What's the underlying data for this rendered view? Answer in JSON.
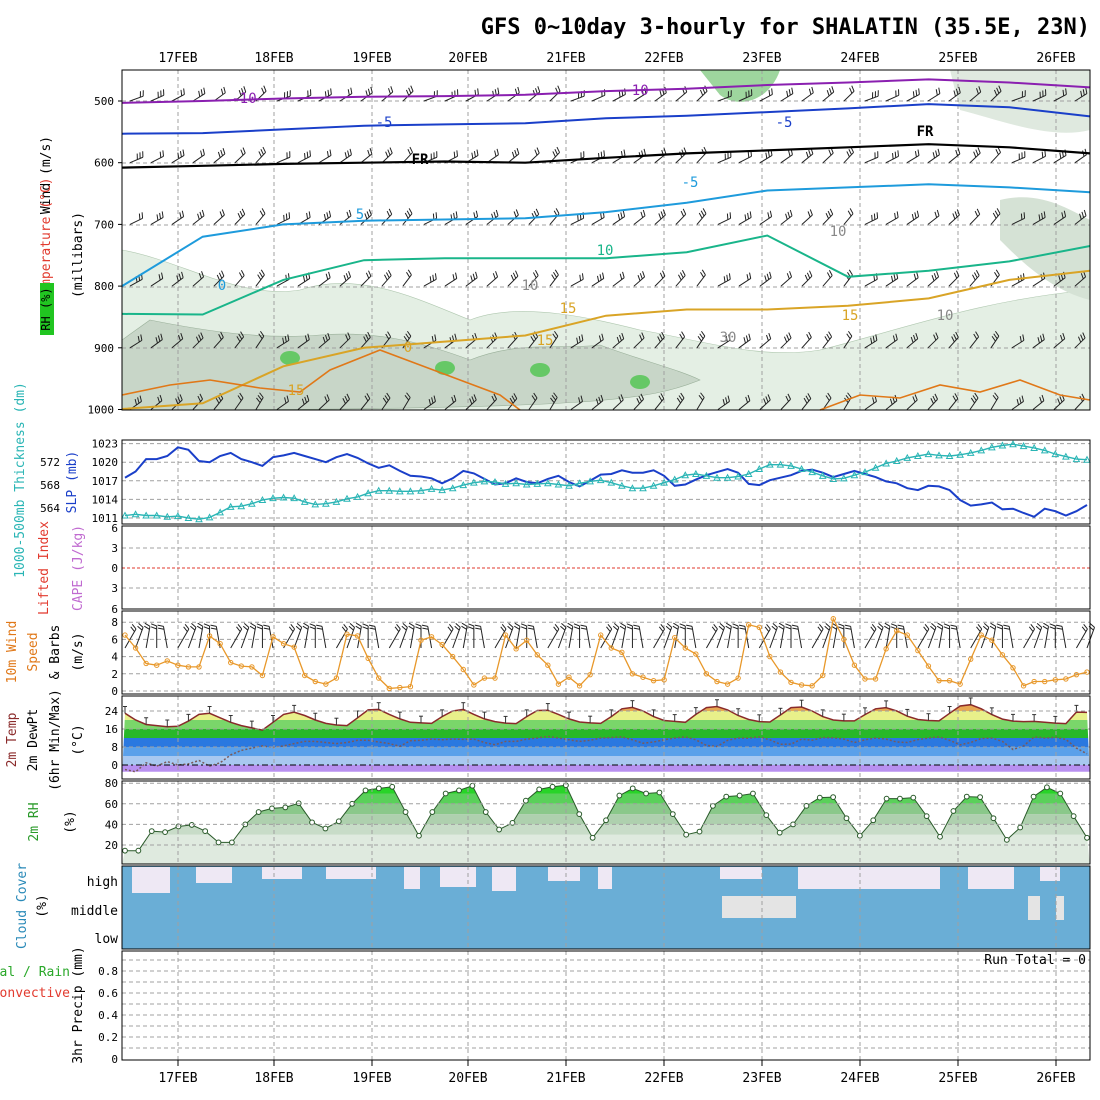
{
  "title": "GFS 0~10day 3-hourly for SHALATIN (35.5E, 23N)",
  "run_total_text": "Run Total = 0",
  "colors": {
    "frame": "#000000",
    "grid": "#a0a0a0",
    "slp": "#1a3fc9",
    "thickness": "#2ab5b5",
    "wind_speed": "#e8982a",
    "temp_purple": "#8a1fb0",
    "temp_blue_dark": "#1a3fc9",
    "temp_blue_light": "#1e9bdc",
    "temp_green": "#19b58a",
    "temp_gold": "#d9a426",
    "temp_orange": "#e07818",
    "rh_green": "#21c521",
    "cloud_blue": "#6aaed6",
    "lifted_red": "#e23a2e",
    "cape_purple": "#c06ad0"
  },
  "chart_data": [
    {
      "type": "line",
      "panel": "upper-air",
      "x_dates": [
        "17FEB",
        "18FEB",
        "19FEB",
        "20FEB",
        "21FEB",
        "22FEB",
        "23FEB",
        "24FEB",
        "25FEB",
        "26FEB"
      ],
      "ylabel_parts": [
        "RH (%)",
        "Temperature (°C)",
        "Wind (m/s)",
        "(millibars)"
      ],
      "y_ticks": [
        "500",
        "600",
        "700",
        "800",
        "900",
        "1000"
      ],
      "contour_labels": [
        "-10",
        "-5",
        "FR",
        "-5",
        "5",
        "0",
        "10",
        "15",
        "15",
        "10",
        "-10",
        "-5",
        "FR",
        "10",
        "30",
        "0",
        "15",
        "10",
        "15"
      ],
      "isotherms": [
        {
          "name": "-10",
          "values": [
            503,
            500,
            496,
            493,
            492,
            490,
            484,
            480,
            474,
            470,
            465,
            470,
            478
          ]
        },
        {
          "name": "-5",
          "values": [
            553,
            552,
            546,
            540,
            538,
            536,
            528,
            524,
            518,
            512,
            505,
            510,
            525
          ]
        },
        {
          "name": "FR",
          "values": [
            608,
            605,
            602,
            600,
            598,
            600,
            592,
            585,
            580,
            575,
            570,
            575,
            585
          ]
        },
        {
          "name": "5",
          "values": [
            800,
            720,
            700,
            694,
            692,
            690,
            680,
            665,
            645,
            640,
            635,
            640,
            648
          ]
        },
        {
          "name": "10",
          "values": [
            845,
            846,
            790,
            758,
            755,
            755,
            755,
            745,
            718,
            785,
            775,
            760,
            735
          ]
        },
        {
          "name": "15",
          "values": [
            1000,
            990,
            930,
            900,
            890,
            880,
            848,
            838,
            838,
            832,
            820,
            790,
            775
          ]
        }
      ]
    },
    {
      "type": "line",
      "panel": "pressure-thickness",
      "ylabel_left": "1000-500mb Thickness (dm)",
      "ylabel_right": "SLP (mb)",
      "left_ticks": [
        "572",
        "568",
        "564"
      ],
      "right_ticks": [
        "1023",
        "1020",
        "1017",
        "1014",
        "1011"
      ],
      "ylim": [
        1010,
        1023
      ],
      "series": [
        {
          "name": "SLP (mb)",
          "values": [
            1017.5,
            1018.5,
            1020.5,
            1020.5,
            1021,
            1022.4,
            1022,
            1020.2,
            1020,
            1021,
            1021.5,
            1020.5,
            1020,
            1019.4,
            1020.8,
            1021.1,
            1021.5,
            1021,
            1020.5,
            1020,
            1020.8,
            1021.3,
            1020.7,
            1019.8,
            1019.1,
            1019.5,
            1018.6,
            1017.8,
            1017.7,
            1017.4,
            1016.6,
            1017.4,
            1018.6,
            1018.2,
            1017.3,
            1016.4,
            1016.6,
            1017.4,
            1016.8,
            1016.6,
            1017.3,
            1017.8,
            1016.8,
            1016.1,
            1017,
            1018,
            1018.1,
            1018.7,
            1018.3,
            1018.3,
            1018.7,
            1017.8,
            1016.2,
            1016.4,
            1017.2,
            1017.9,
            1018.4,
            1018.9,
            1018.3,
            1016.5,
            1016.3,
            1017.1,
            1017.5,
            1017.9,
            1018.6,
            1018.8,
            1018.3,
            1017.6,
            1018.1,
            1018.6,
            1018.1,
            1017.6,
            1016.9,
            1016.6,
            1015.8,
            1015.5,
            1016.2,
            1016.1,
            1015.5,
            1013.9,
            1013,
            1013.2,
            1013.5,
            1012.4,
            1012.5,
            1011.8,
            1011.2,
            1012.5,
            1012.1,
            1011.4,
            1012.1,
            1013.1
          ]
        },
        {
          "name": "1000-500mb Thickness (dm)",
          "values": [
            1011.4,
            1011.6,
            1011.4,
            1011.4,
            1011.2,
            1011.3,
            1011,
            1010.8,
            1011.1,
            1011.9,
            1012.8,
            1012.9,
            1013.3,
            1013.9,
            1014.2,
            1014.3,
            1014.2,
            1013.6,
            1013.2,
            1013.3,
            1013.6,
            1014.1,
            1014.4,
            1015,
            1015.4,
            1015.4,
            1015.3,
            1015.3,
            1015.4,
            1015.7,
            1015.5,
            1015.8,
            1016.3,
            1016.7,
            1016.9,
            1016.8,
            1016.5,
            1016.6,
            1016.4,
            1016.5,
            1016.6,
            1016.4,
            1016.2,
            1016.6,
            1016.9,
            1017.1,
            1016.7,
            1016.2,
            1015.8,
            1015.8,
            1016.2,
            1016.7,
            1017.2,
            1017.9,
            1018.1,
            1017.8,
            1017.5,
            1017.5,
            1017.7,
            1018.1,
            1018.9,
            1019.6,
            1019.6,
            1019.4,
            1018.9,
            1018.4,
            1017.8,
            1017.3,
            1017.4,
            1017.9,
            1018.4,
            1019.1,
            1019.8,
            1020.2,
            1020.7,
            1021,
            1021.3,
            1021.1,
            1021,
            1021.2,
            1021.5,
            1021.9,
            1022.4,
            1022.7,
            1022.9,
            1022.6,
            1022.3,
            1021.9,
            1021.3,
            1020.9,
            1020.5,
            1020.4
          ]
        }
      ]
    },
    {
      "type": "line",
      "panel": "lifted-cape",
      "ylabel_parts": [
        "Lifted Index",
        "CAPE (J/kg)"
      ],
      "y_ticks": [
        "6",
        "3",
        "0",
        "3",
        "6"
      ],
      "series": [
        {
          "name": "Lifted Index",
          "values": []
        }
      ]
    },
    {
      "type": "line",
      "panel": "wind-10m",
      "ylabel_parts": [
        "10m Wind",
        "Speed",
        "& Barbs",
        "(m/s)"
      ],
      "y_ticks": [
        "8",
        "6",
        "4",
        "2",
        "0"
      ],
      "ylim": [
        0,
        8.5
      ],
      "series": [
        {
          "name": "10m Wind Speed",
          "values": [
            6.5,
            5,
            3.2,
            3,
            3.5,
            3,
            2.8,
            2.8,
            6.4,
            5.5,
            3.3,
            2.9,
            2.8,
            1.8,
            6.3,
            5.5,
            5.1,
            1.8,
            1.1,
            0.8,
            1.5,
            6.6,
            6.4,
            3.8,
            1.5,
            0.3,
            0.4,
            0.5,
            5.9,
            6.3,
            5.4,
            4,
            2.5,
            0.7,
            1.5,
            1.5,
            6.5,
            4.9,
            5.9,
            4.2,
            3,
            0.8,
            1.6,
            0.6,
            1.9,
            6.5,
            5,
            4.5,
            2,
            1.6,
            1.2,
            1.3,
            6.2,
            5,
            4.3,
            2,
            1.1,
            0.8,
            1.5,
            7.7,
            7.4,
            4,
            2.2,
            1,
            0.7,
            0.6,
            1.8,
            8.4,
            6,
            3,
            1.4,
            1.4,
            4.9,
            7,
            6.5,
            4.7,
            2.9,
            1.2,
            1.2,
            0.8,
            3.7,
            6.5,
            5.9,
            4.2,
            2.7,
            0.6,
            1.1,
            1.1,
            1.3,
            1.4,
            1.9,
            2.2
          ]
        }
      ]
    },
    {
      "type": "area",
      "panel": "temp-2m",
      "ylabel_parts": [
        "2m Temp",
        "2m DewPt",
        "(6hr Min/Max)",
        "(°C)"
      ],
      "y_ticks": [
        "24",
        "16",
        "8",
        "0"
      ],
      "ylim": [
        -3,
        27
      ],
      "series": [
        {
          "name": "2m Temp",
          "values": [
            23,
            20,
            18,
            17.5,
            17,
            17.2,
            19.5,
            22.5,
            23,
            21,
            19,
            17.5,
            16.5,
            15.5,
            19,
            22.5,
            23.5,
            22,
            20,
            18.5,
            17.8,
            17.5,
            21,
            24.5,
            24.7,
            22.5,
            20.5,
            19,
            18.7,
            18.5,
            21.5,
            24,
            24.7,
            22.5,
            20.5,
            19.3,
            18.6,
            18.4,
            21.5,
            24.2,
            24.3,
            22.5,
            20.5,
            19.1,
            18.7,
            18.5,
            21.5,
            25,
            25.6,
            24,
            21.5,
            19.8,
            19.4,
            19,
            22.5,
            25.5,
            26,
            24.5,
            22,
            20.2,
            19.3,
            19.1,
            22.2,
            25.5,
            25.8,
            24,
            21.5,
            20,
            19.6,
            19.6,
            22.4,
            25,
            25.5,
            24,
            21.7,
            20.2,
            19.8,
            19.6,
            23,
            26.2,
            26.8,
            25,
            22.4,
            20.4,
            19.5,
            19.3,
            19.4,
            19,
            18.6,
            18.4,
            23.5,
            23.4
          ]
        },
        {
          "name": "2m DewPt",
          "values": [
            -2,
            -3,
            1,
            -0.5,
            1.5,
            0,
            0.5,
            2,
            -0.5,
            1,
            4.5,
            6.5,
            7.5,
            8.5,
            7.8,
            8.5,
            9.5,
            10.5,
            10.5,
            10,
            9.5,
            10,
            11,
            11,
            10.2,
            9.5,
            8.3,
            10.8,
            11,
            11.5,
            11.2,
            11.5,
            11.4,
            11.5,
            10,
            9,
            10.5,
            10.5,
            11.5,
            12,
            12.7,
            12,
            11.2,
            10.5,
            11,
            12,
            12.2,
            12.5,
            11.2,
            9.7,
            10.2,
            11.2,
            12,
            12.5,
            11.2,
            8.7,
            8.2,
            11,
            12,
            11.9,
            12.5,
            11.2,
            9.2,
            9.3,
            11.5,
            11,
            12.2,
            12.1,
            11.5,
            10,
            11.2,
            12,
            11.5,
            10.2,
            10,
            11.3,
            12,
            12.5,
            11,
            9,
            10,
            11.8,
            12,
            10.5,
            6.9,
            8.5,
            12.5,
            12,
            12.3,
            11.4,
            7.5,
            5
          ]
        }
      ]
    },
    {
      "type": "area",
      "panel": "rh-2m",
      "ylabel_parts": [
        "2m RH",
        "(%)"
      ],
      "y_ticks": [
        "80",
        "60",
        "40",
        "20"
      ],
      "ylim": [
        10,
        82
      ],
      "series": [
        {
          "name": "2m RH",
          "values": [
            14.5,
            14.5,
            33.5,
            32.5,
            38,
            39.5,
            33.5,
            22.5,
            22.5,
            40,
            52,
            55.5,
            56.5,
            60.5,
            42,
            36,
            43,
            60,
            73,
            75,
            76.5,
            52,
            29,
            52,
            70,
            73,
            77.5,
            52,
            35,
            41.5,
            63,
            74,
            76.5,
            78,
            50,
            27,
            44,
            68,
            75,
            70,
            71,
            50,
            30,
            33,
            58,
            67,
            68,
            70,
            49,
            32,
            40,
            58,
            66,
            66.5,
            46,
            29,
            44,
            65,
            65,
            66,
            48,
            28,
            53,
            67,
            66.5,
            46,
            25,
            37,
            67,
            76,
            70,
            48,
            27
          ]
        }
      ]
    },
    {
      "type": "bar",
      "panel": "cloud-cover",
      "ylabel_parts": [
        "Cloud Cover",
        "(%)"
      ],
      "y_ticks": [
        "high",
        "middle",
        "low"
      ]
    },
    {
      "type": "bar",
      "panel": "precip",
      "ylabel_parts": [
        "3hr Precip (mm)",
        "Total / Rain",
        "Convective"
      ],
      "y_ticks": [
        "0.8",
        "0.6",
        "0.4",
        "0.2",
        "0"
      ],
      "ylim": [
        0,
        0.9
      ],
      "values": []
    }
  ]
}
